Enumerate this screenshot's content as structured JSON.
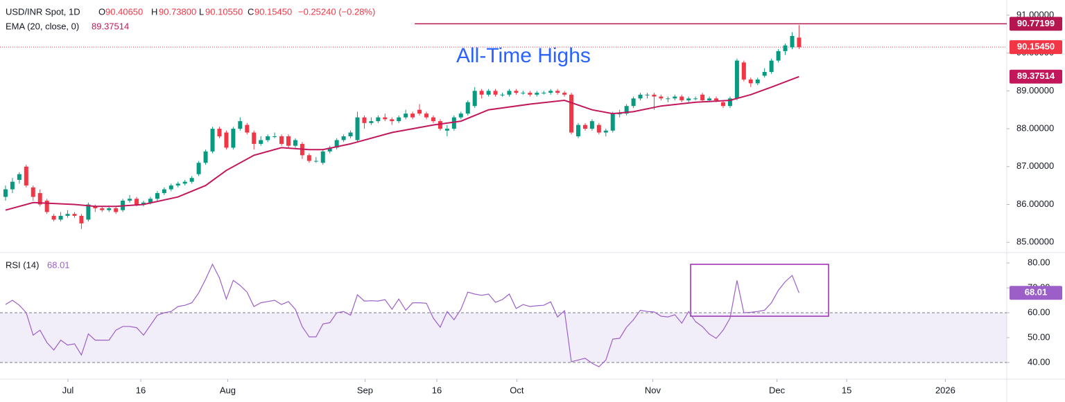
{
  "chart_data": {
    "type": "candlestick",
    "title": "USD/INR Spot, 1D",
    "ohlc_header": [
      {
        "key": "O",
        "value": 90.4065,
        "label": "90.40650"
      },
      {
        "key": "H",
        "value": 90.738,
        "label": "90.73800"
      },
      {
        "key": "L",
        "value": 90.1055,
        "label": "90.10550"
      },
      {
        "key": "C",
        "value": 90.1545,
        "label": "90.15450"
      }
    ],
    "change": {
      "value": -0.2524,
      "label": "−0.25240 (−0.28%)"
    },
    "annotation": "All-Time Highs",
    "up_color": "#089981",
    "down_color": "#f23645",
    "xlim": [
      -0.8,
      145.1
    ],
    "xticks": [
      {
        "value": 9.05,
        "label": "Jul"
      },
      {
        "value": 19.6,
        "label": "16"
      },
      {
        "value": 32.2,
        "label": "Aug"
      },
      {
        "value": 52.1,
        "label": "Sep"
      },
      {
        "value": 62.5,
        "label": "16"
      },
      {
        "value": 74.1,
        "label": "Oct"
      },
      {
        "value": 93.8,
        "label": "Nov"
      },
      {
        "value": 111.8,
        "label": "Dec"
      },
      {
        "value": 121.9,
        "label": "15"
      },
      {
        "value": 136.2,
        "label": "2026"
      }
    ],
    "ylim": [
      84.73,
      91.4
    ],
    "yticks": [
      {
        "value": 85,
        "label": "85.00000"
      },
      {
        "value": 86,
        "label": "86.00000"
      },
      {
        "value": 87,
        "label": "87.00000"
      },
      {
        "value": 88,
        "label": "88.00000"
      },
      {
        "value": 89,
        "label": "89.00000"
      },
      {
        "value": 90,
        "label": "90.00000"
      },
      {
        "value": 91,
        "label": "91.00000"
      }
    ],
    "grid": false,
    "ohlc": [
      [
        86.2,
        86.5,
        86.1,
        86.4
      ],
      [
        86.4,
        86.7,
        86.3,
        86.6
      ],
      [
        86.65,
        86.85,
        86.55,
        86.8
      ],
      [
        87.0,
        87.05,
        86.45,
        86.5
      ],
      [
        86.45,
        86.5,
        86.1,
        86.2
      ],
      [
        86.3,
        86.4,
        85.95,
        86.0
      ],
      [
        86.1,
        86.15,
        85.75,
        85.8
      ],
      [
        85.7,
        85.75,
        85.55,
        85.6
      ],
      [
        85.6,
        85.8,
        85.55,
        85.7
      ],
      [
        85.7,
        85.85,
        85.65,
        85.75
      ],
      [
        85.75,
        85.8,
        85.65,
        85.7
      ],
      [
        85.7,
        85.75,
        85.35,
        85.5
      ],
      [
        85.6,
        86.05,
        85.55,
        86.0
      ],
      [
        85.95,
        86.0,
        85.8,
        85.9
      ],
      [
        85.9,
        85.95,
        85.8,
        85.85
      ],
      [
        85.85,
        85.95,
        85.8,
        85.9
      ],
      [
        85.9,
        85.95,
        85.75,
        85.8
      ],
      [
        85.85,
        86.15,
        85.8,
        86.1
      ],
      [
        86.1,
        86.25,
        86.05,
        86.15
      ],
      [
        86.15,
        86.2,
        85.95,
        86.0
      ],
      [
        86.0,
        86.1,
        85.95,
        86.05
      ],
      [
        86.05,
        86.2,
        86.0,
        86.15
      ],
      [
        86.15,
        86.35,
        86.1,
        86.3
      ],
      [
        86.3,
        86.45,
        86.25,
        86.4
      ],
      [
        86.4,
        86.55,
        86.35,
        86.5
      ],
      [
        86.5,
        86.6,
        86.45,
        86.55
      ],
      [
        86.55,
        86.65,
        86.5,
        86.6
      ],
      [
        86.6,
        86.75,
        86.55,
        86.7
      ],
      [
        86.8,
        87.15,
        86.75,
        87.1
      ],
      [
        87.1,
        87.45,
        87.05,
        87.4
      ],
      [
        87.4,
        88.05,
        87.35,
        88.0
      ],
      [
        88.0,
        88.05,
        87.75,
        87.8
      ],
      [
        87.9,
        87.95,
        87.45,
        87.5
      ],
      [
        87.5,
        88.05,
        87.45,
        88.0
      ],
      [
        88.0,
        88.3,
        87.95,
        88.2
      ],
      [
        88.1,
        88.15,
        87.85,
        87.9
      ],
      [
        87.9,
        87.95,
        87.45,
        87.6
      ],
      [
        87.6,
        87.8,
        87.55,
        87.7
      ],
      [
        87.7,
        87.85,
        87.65,
        87.8
      ],
      [
        87.8,
        87.9,
        87.75,
        87.8
      ],
      [
        87.8,
        87.85,
        87.55,
        87.6
      ],
      [
        87.8,
        87.85,
        87.5,
        87.55
      ],
      [
        87.55,
        87.75,
        87.5,
        87.7
      ],
      [
        87.6,
        87.65,
        87.2,
        87.3
      ],
      [
        87.3,
        87.35,
        87.1,
        87.15
      ],
      [
        87.15,
        87.25,
        87.1,
        87.15
      ],
      [
        87.1,
        87.45,
        87.05,
        87.4
      ],
      [
        87.4,
        87.55,
        87.35,
        87.5
      ],
      [
        87.5,
        87.75,
        87.45,
        87.7
      ],
      [
        87.7,
        87.85,
        87.65,
        87.8
      ],
      [
        87.8,
        87.95,
        87.75,
        87.9
      ],
      [
        87.7,
        88.45,
        87.65,
        88.3
      ],
      [
        88.3,
        88.35,
        88.0,
        88.15
      ],
      [
        88.15,
        88.3,
        88.1,
        88.2
      ],
      [
        88.2,
        88.35,
        88.15,
        88.3
      ],
      [
        88.3,
        88.4,
        88.2,
        88.25
      ],
      [
        88.25,
        88.3,
        88.1,
        88.2
      ],
      [
        88.2,
        88.35,
        88.15,
        88.3
      ],
      [
        88.3,
        88.5,
        88.25,
        88.4
      ],
      [
        88.4,
        88.45,
        88.25,
        88.3
      ],
      [
        88.5,
        88.65,
        88.35,
        88.4
      ],
      [
        88.4,
        88.45,
        88.25,
        88.3
      ],
      [
        88.3,
        88.35,
        88.15,
        88.2
      ],
      [
        88.2,
        88.25,
        87.95,
        88.0
      ],
      [
        87.95,
        88.1,
        87.8,
        88.0
      ],
      [
        88.0,
        88.35,
        87.95,
        88.3
      ],
      [
        88.3,
        88.45,
        88.25,
        88.4
      ],
      [
        88.4,
        88.75,
        88.35,
        88.7
      ],
      [
        88.6,
        89.1,
        88.55,
        89.0
      ],
      [
        89.0,
        89.05,
        88.8,
        88.9
      ],
      [
        88.9,
        89.05,
        88.85,
        89.0
      ],
      [
        89.0,
        89.05,
        88.85,
        88.9
      ],
      [
        88.9,
        88.95,
        88.85,
        88.9
      ],
      [
        88.9,
        89.05,
        88.85,
        89.0
      ],
      [
        89.0,
        89.05,
        88.9,
        88.95
      ],
      [
        88.95,
        89.0,
        88.9,
        88.95
      ],
      [
        88.95,
        89.0,
        88.85,
        88.9
      ],
      [
        88.9,
        89.0,
        88.85,
        88.95
      ],
      [
        88.95,
        89.0,
        88.9,
        88.95
      ],
      [
        88.95,
        89.05,
        88.9,
        89.0
      ],
      [
        89.0,
        89.05,
        88.9,
        88.95
      ],
      [
        88.95,
        89.0,
        88.85,
        88.9
      ],
      [
        88.9,
        88.95,
        87.85,
        87.9
      ],
      [
        87.8,
        88.15,
        87.75,
        88.1
      ],
      [
        88.1,
        88.15,
        87.95,
        88.0
      ],
      [
        88.0,
        88.25,
        87.95,
        88.2
      ],
      [
        88.1,
        88.15,
        87.85,
        87.9
      ],
      [
        87.9,
        88.0,
        87.8,
        87.95
      ],
      [
        87.95,
        88.45,
        87.9,
        88.4
      ],
      [
        88.4,
        88.5,
        88.3,
        88.4
      ],
      [
        88.4,
        88.65,
        88.35,
        88.6
      ],
      [
        88.6,
        88.85,
        88.55,
        88.8
      ],
      [
        88.8,
        88.95,
        88.75,
        88.9
      ],
      [
        88.9,
        88.95,
        88.8,
        88.9
      ],
      [
        88.9,
        88.95,
        88.5,
        88.85
      ],
      [
        88.85,
        88.9,
        88.75,
        88.8
      ],
      [
        88.8,
        88.85,
        88.7,
        88.8
      ],
      [
        88.8,
        88.9,
        88.75,
        88.85
      ],
      [
        88.85,
        88.9,
        88.7,
        88.75
      ],
      [
        88.75,
        88.85,
        88.7,
        88.8
      ],
      [
        88.8,
        88.85,
        88.75,
        88.8
      ],
      [
        88.9,
        88.95,
        88.7,
        88.75
      ],
      [
        88.75,
        88.85,
        88.7,
        88.8
      ],
      [
        88.8,
        88.85,
        88.7,
        88.75
      ],
      [
        88.7,
        88.75,
        88.55,
        88.6
      ],
      [
        88.6,
        88.85,
        88.55,
        88.8
      ],
      [
        88.8,
        89.85,
        88.75,
        89.8
      ],
      [
        89.75,
        89.8,
        89.25,
        89.3
      ],
      [
        89.3,
        89.35,
        89.1,
        89.2
      ],
      [
        89.2,
        89.35,
        89.15,
        89.3
      ],
      [
        89.4,
        89.6,
        89.35,
        89.5
      ],
      [
        89.5,
        89.85,
        89.45,
        89.8
      ],
      [
        89.8,
        90.1,
        89.75,
        90.05
      ],
      [
        90.05,
        90.25,
        89.95,
        90.2
      ],
      [
        90.15,
        90.55,
        90.1,
        90.45
      ],
      [
        90.4065,
        90.738,
        90.1055,
        90.1545
      ]
    ],
    "ema": {
      "name": "EMA (20, close, 0)",
      "color": "#c2185b",
      "x": [
        0,
        4,
        10,
        13,
        16,
        20,
        25,
        29,
        32,
        36,
        40,
        44,
        46,
        50,
        56,
        62,
        66,
        70,
        76,
        81,
        85,
        88,
        91,
        95,
        100,
        105,
        108,
        111,
        115
      ],
      "values": [
        85.85,
        86.05,
        86.0,
        85.95,
        85.95,
        86.0,
        86.2,
        86.5,
        86.9,
        87.3,
        87.5,
        87.45,
        87.45,
        87.6,
        87.9,
        88.1,
        88.2,
        88.5,
        88.65,
        88.75,
        88.5,
        88.4,
        88.45,
        88.6,
        88.7,
        88.75,
        88.9,
        89.1,
        89.37514
      ],
      "last": {
        "value": 89.37514,
        "label": "89.37514"
      }
    },
    "high_line": {
      "value": 90.77199,
      "label": "90.77199",
      "color": "#b5164f",
      "from_x": 59.3
    },
    "last_price": {
      "value": 90.1545,
      "label": "90.15450",
      "color": "#f23645"
    },
    "rsi": {
      "name": "RSI (14)",
      "color": "#9c5fc7",
      "values": [
        63.3,
        65,
        63,
        60,
        51,
        53,
        48,
        45,
        49,
        47,
        47.5,
        43,
        51.5,
        49,
        49,
        49,
        53,
        54.5,
        54.5,
        54,
        51,
        55,
        59,
        60,
        60.5,
        62.5,
        63,
        64,
        68,
        73.5,
        79.5,
        74,
        65.5,
        73,
        71,
        68.3,
        62.5,
        64,
        64.5,
        65,
        63.3,
        64.5,
        61.4,
        54.4,
        50.3,
        50.3,
        55.5,
        56,
        60,
        60.5,
        59,
        67.2,
        64.7,
        64.8,
        64.7,
        65.3,
        61.4,
        65.5,
        61,
        64,
        64,
        63.8,
        57.8,
        54.2,
        60.5,
        57.2,
        61.4,
        68.3,
        67.5,
        67,
        67.5,
        64.2,
        65.3,
        67.5,
        61.7,
        63.3,
        62.5,
        62.8,
        63,
        64.4,
        58.3,
        60.8,
        40.3,
        41,
        41.7,
        39.7,
        38.3,
        41,
        49.4,
        49.7,
        54.2,
        57.2,
        61,
        60.5,
        60.3,
        58.6,
        58.3,
        59.2,
        55.8,
        60.5,
        56.4,
        54.4,
        51.4,
        49.7,
        53,
        57.8,
        73,
        60,
        60.2,
        60.5,
        61,
        64,
        69,
        72.5,
        75,
        68.01
      ],
      "ylim": [
        33.3,
        84.2
      ],
      "yticks": [
        {
          "value": 40,
          "label": "40.00"
        },
        {
          "value": 50,
          "label": "50.00"
        },
        {
          "value": 60,
          "label": "60.00"
        },
        {
          "value": 70,
          "label": "70.00"
        },
        {
          "value": 80,
          "label": "80.00"
        }
      ],
      "bands": [
        40,
        60
      ],
      "last": {
        "value": 68.01,
        "label": "68.01"
      }
    }
  }
}
